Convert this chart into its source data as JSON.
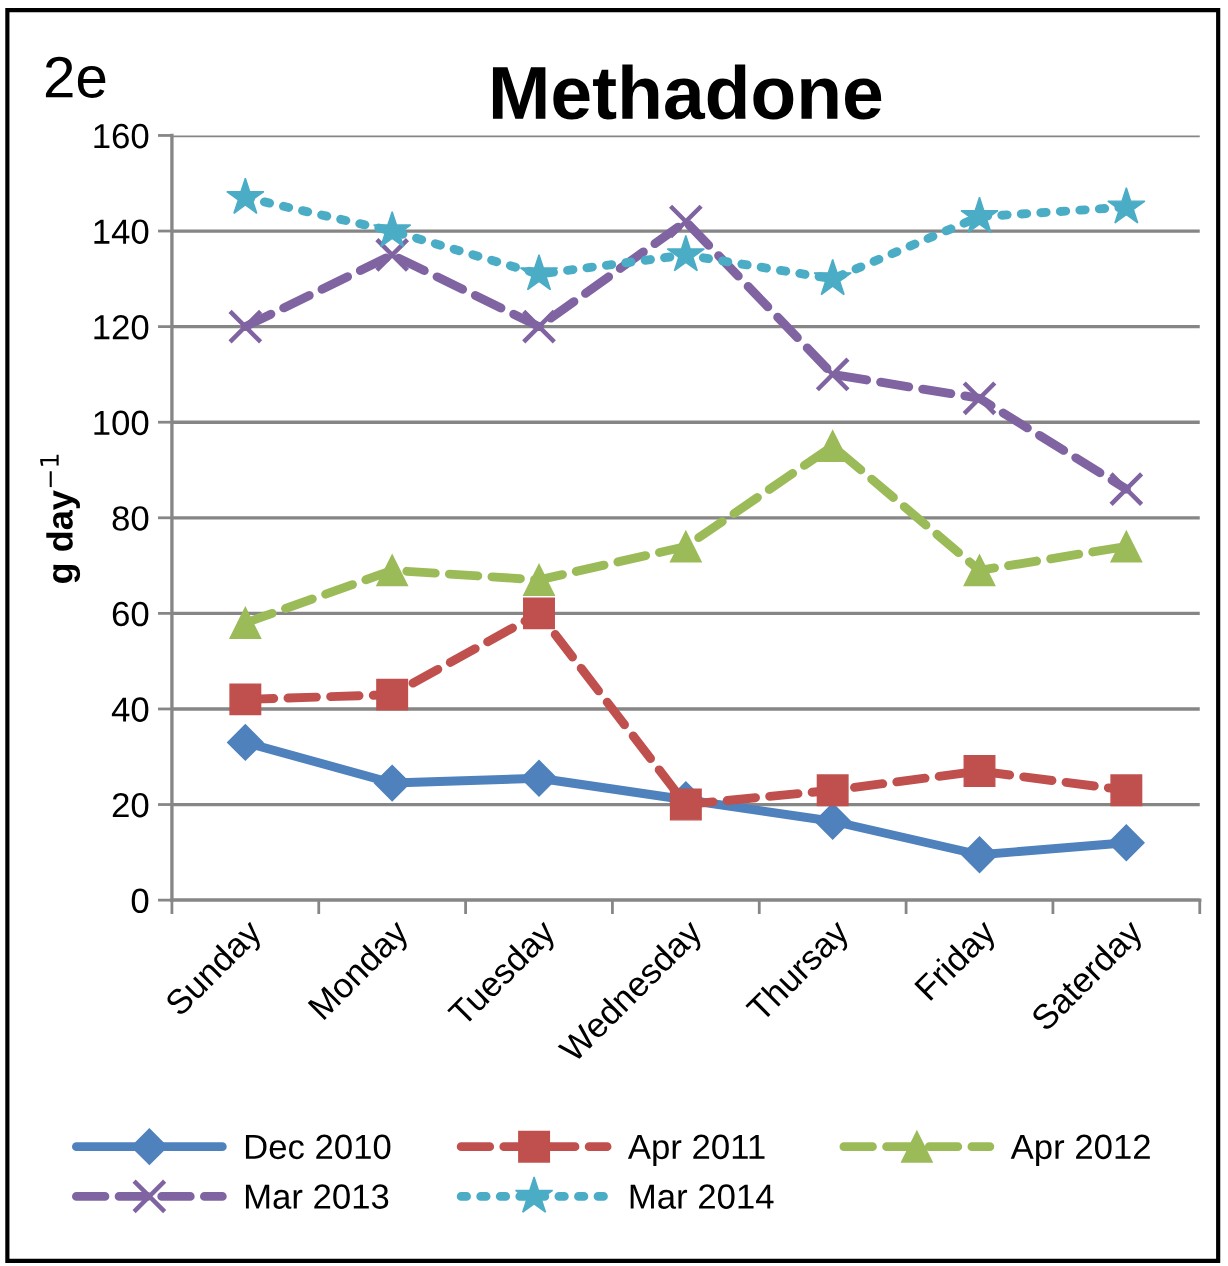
{
  "chart_data": {
    "type": "line",
    "title": "Methadone",
    "ylabel": "g day$^{−1}$",
    "annotations": [
      "2e"
    ],
    "categories": [
      "Sunday",
      "Monday",
      "Tuesday",
      "Wednesday",
      "Thursay",
      "Friday",
      "Saterday"
    ],
    "series": [
      {
        "name": "Dec 2010",
        "color": "#4f81bd",
        "marker": "diamond",
        "line_style": "solid",
        "values": [
          33,
          24.5,
          25.5,
          21,
          16.5,
          9.5,
          12
        ]
      },
      {
        "name": "Apr 2011",
        "color": "#c0504d",
        "marker": "square",
        "line_style": "dashed",
        "values": [
          42,
          43,
          60,
          20,
          23,
          27,
          23
        ]
      },
      {
        "name": "Apr 2012",
        "color": "#9bbb59",
        "marker": "triangle",
        "line_style": "dashed",
        "values": [
          58,
          69,
          67,
          74,
          95,
          69,
          74
        ]
      },
      {
        "name": "Mar 2013",
        "color": "#8064a2",
        "marker": "cross",
        "line_style": "dashed",
        "values": [
          120,
          135,
          120,
          142,
          110,
          105,
          86
        ]
      },
      {
        "name": "Mar 2014",
        "color": "#4bacc6",
        "marker": "star",
        "line_style": "dotted",
        "values": [
          147,
          140,
          131,
          135,
          130,
          143,
          145
        ]
      }
    ],
    "ylim": [
      0,
      160
    ],
    "yticks": [
      0,
      20,
      40,
      60,
      80,
      100,
      120,
      140,
      160
    ],
    "grid": "y",
    "legend": "bottom"
  }
}
